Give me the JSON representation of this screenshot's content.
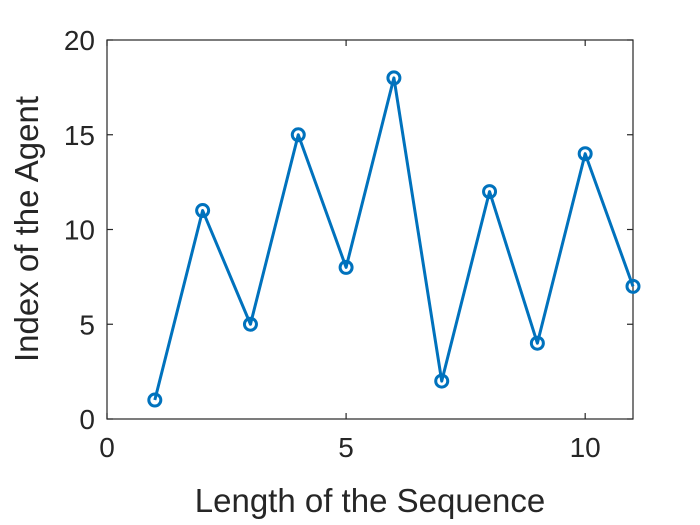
{
  "chart_data": {
    "type": "line",
    "title": "",
    "xlabel": "Length of the Sequence",
    "ylabel": "Index of the Agent",
    "xlim": [
      0,
      11
    ],
    "ylim": [
      0,
      20
    ],
    "xticks": [
      0,
      5,
      10
    ],
    "yticks": [
      0,
      5,
      10,
      15,
      20
    ],
    "grid": false,
    "series": [
      {
        "x": [
          1,
          2,
          3,
          4,
          5,
          6,
          7,
          8,
          9,
          10,
          11
        ],
        "y": [
          1,
          11,
          5,
          15,
          8,
          18,
          2,
          12,
          4,
          14,
          7
        ],
        "marker": "circle",
        "color": "#0072BD"
      }
    ]
  }
}
